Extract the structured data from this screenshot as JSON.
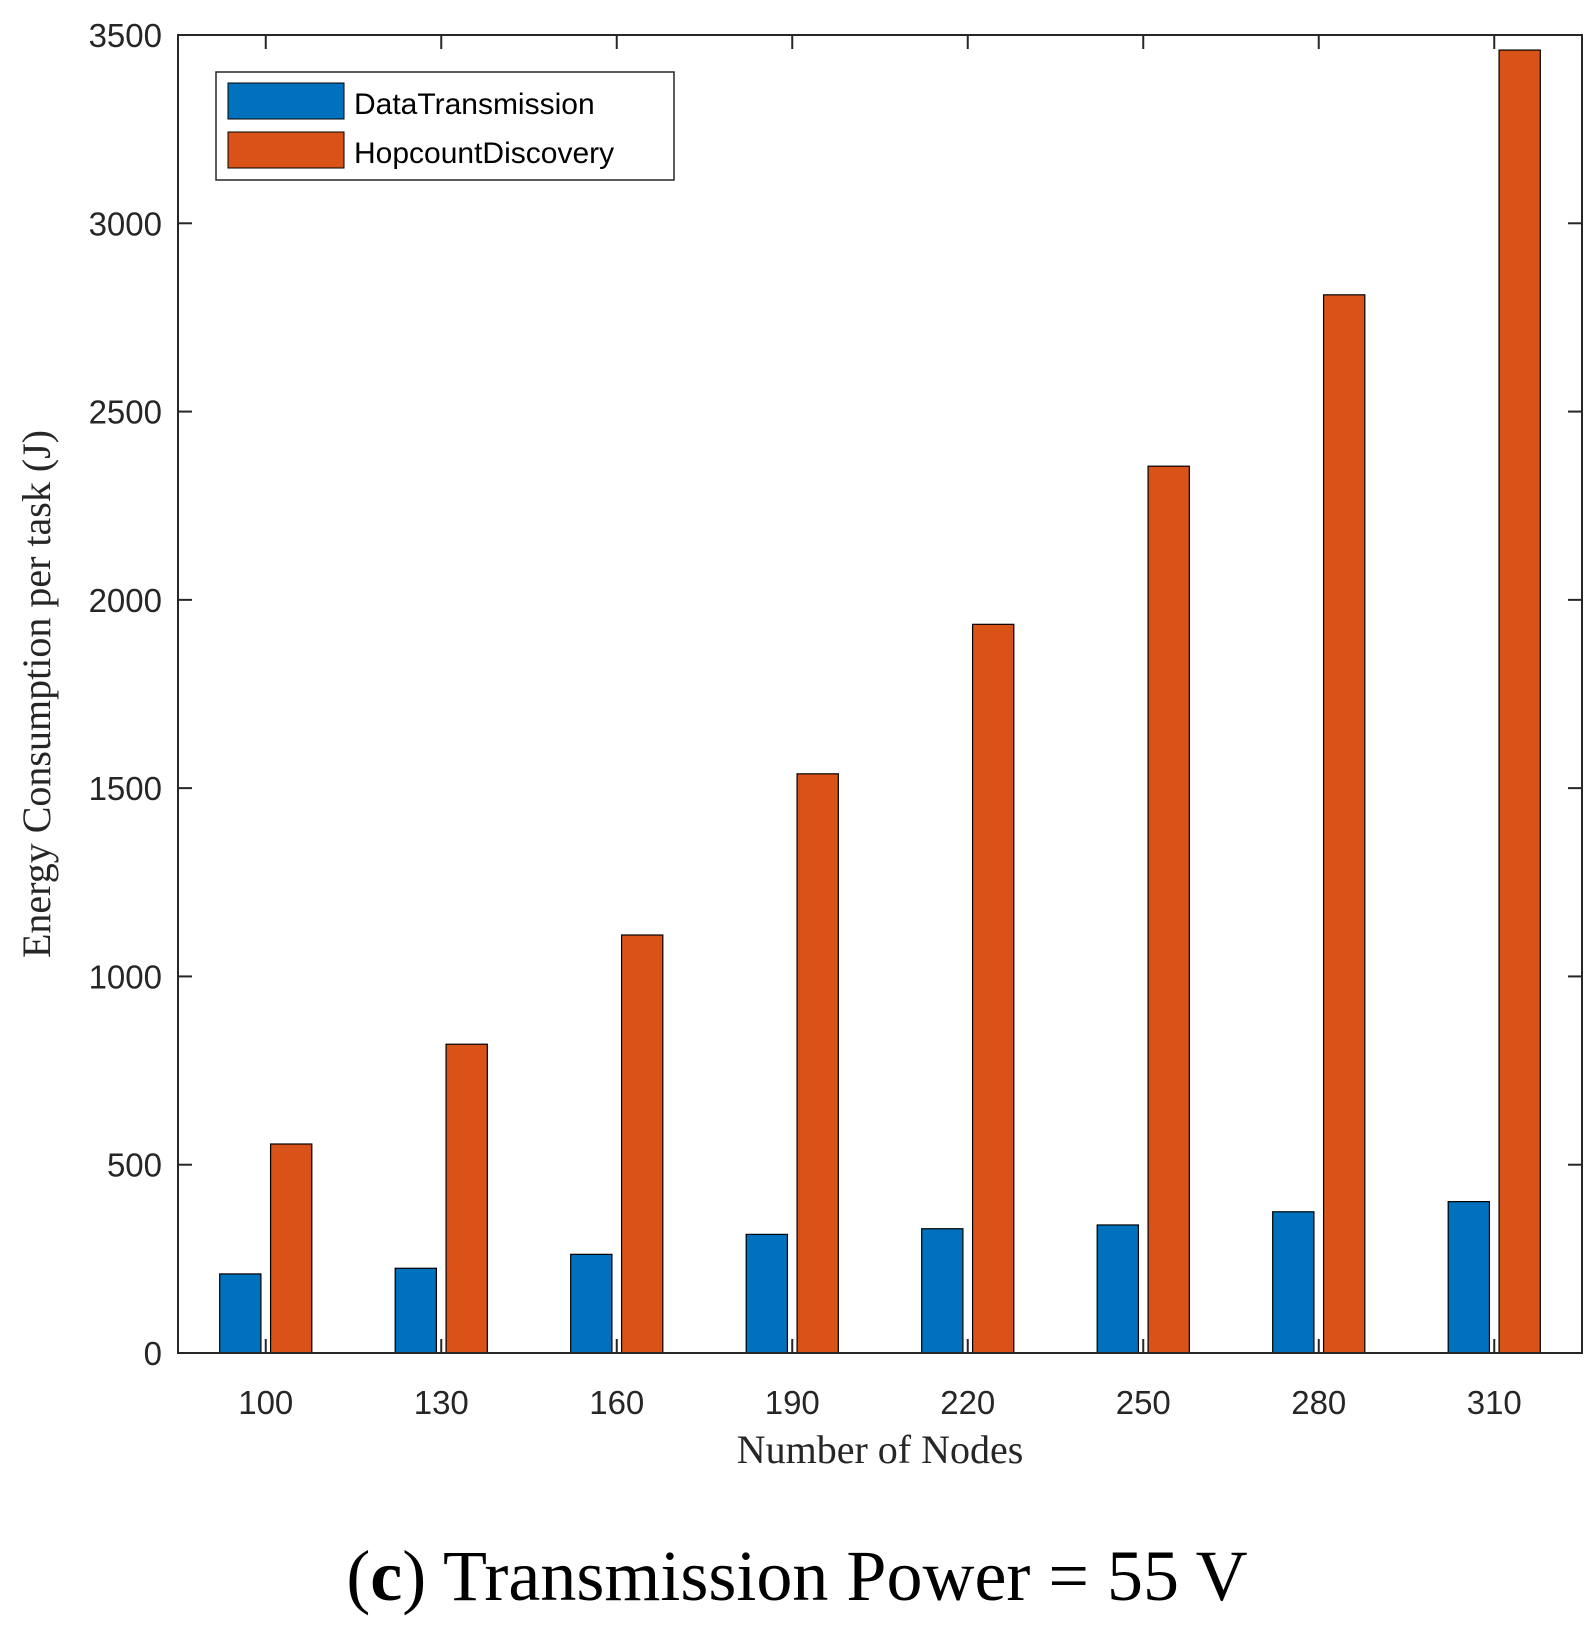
{
  "chart_data": {
    "type": "bar",
    "title": "",
    "xlabel": "Number of Nodes",
    "ylabel": "Energy Consumption per task (J)",
    "categories": [
      "100",
      "130",
      "160",
      "190",
      "220",
      "250",
      "280",
      "310"
    ],
    "series": [
      {
        "name": "DataTransmission",
        "color": "#0072BD",
        "values": [
          210,
          225,
          262,
          315,
          330,
          340,
          375,
          402
        ]
      },
      {
        "name": "HopcountDiscovery",
        "color": "#D95319",
        "values": [
          555,
          820,
          1110,
          1538,
          1935,
          2355,
          2810,
          3460
        ]
      }
    ],
    "ylim": [
      0,
      3500
    ],
    "yticks": [
      "0",
      "500",
      "1000",
      "1500",
      "2000",
      "2500",
      "3000",
      "3500"
    ],
    "legend_position": "top-left",
    "grid": false
  },
  "caption": {
    "label": "c",
    "text": "Transmission Power = 55 V"
  }
}
